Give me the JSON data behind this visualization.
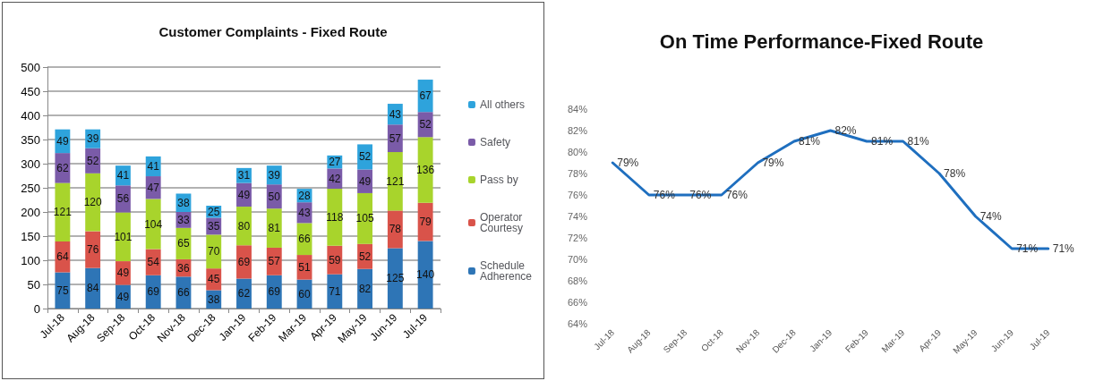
{
  "chart_data": [
    {
      "type": "bar",
      "title": "Customer Complaints - Fixed Route",
      "stacked": true,
      "categories": [
        "Jul-18",
        "Aug-18",
        "Sep-18",
        "Oct-18",
        "Nov-18",
        "Dec-18",
        "Jan-19",
        "Feb-19",
        "Mar-19",
        "Apr-19",
        "May-19",
        "Jun-19",
        "Jul-19"
      ],
      "series": [
        {
          "name": "Schedule Adherence",
          "color": "#2e75b6",
          "values": [
            75,
            84,
            49,
            69,
            66,
            38,
            62,
            69,
            60,
            71,
            82,
            125,
            140
          ]
        },
        {
          "name": "Operator Courtesy",
          "color": "#d9534a",
          "values": [
            64,
            76,
            49,
            54,
            36,
            45,
            69,
            57,
            51,
            59,
            52,
            78,
            79
          ]
        },
        {
          "name": "Pass by",
          "color": "#a8d42c",
          "values": [
            121,
            120,
            101,
            104,
            65,
            70,
            80,
            81,
            66,
            118,
            105,
            121,
            136
          ]
        },
        {
          "name": "Safety",
          "color": "#7a5ba8",
          "values": [
            62,
            52,
            56,
            47,
            33,
            35,
            49,
            50,
            43,
            42,
            49,
            57,
            52
          ]
        },
        {
          "name": "All others",
          "color": "#2ea3dc",
          "values": [
            49,
            39,
            41,
            41,
            38,
            25,
            31,
            39,
            28,
            27,
            52,
            43,
            67
          ]
        }
      ],
      "ylim": [
        0,
        500
      ],
      "yticks": [
        0,
        50,
        100,
        150,
        200,
        250,
        300,
        350,
        400,
        450,
        500
      ],
      "grid": "y",
      "legend": "right",
      "data_labels": true
    },
    {
      "type": "line",
      "title": "On Time Performance-Fixed Route",
      "categories": [
        "Jul-18",
        "Aug-18",
        "Sep-18",
        "Oct-18",
        "Nov-18",
        "Dec-18",
        "Jan-19",
        "Feb-19",
        "Mar-19",
        "Apr-19",
        "May-19",
        "Jun-19",
        "Jul-19"
      ],
      "series": [
        {
          "color": "#1f6fbf",
          "values": [
            79,
            76,
            76,
            76,
            79,
            81,
            82,
            81,
            81,
            78,
            74,
            71,
            71
          ],
          "value_labels": [
            "79%",
            "76%",
            "76%",
            "76%",
            "79%",
            "81%",
            "82%",
            "81%",
            "81%",
            "78%",
            "74%",
            "71%",
            "71%"
          ]
        }
      ],
      "ylim": [
        64,
        84
      ],
      "yticks": [
        {
          "value": 64,
          "label": "64%"
        },
        {
          "value": 66,
          "label": "66%"
        },
        {
          "value": 68,
          "label": "68%"
        },
        {
          "value": 70,
          "label": "70%"
        },
        {
          "value": 72,
          "label": "72%"
        },
        {
          "value": 74,
          "label": "74%"
        },
        {
          "value": 76,
          "label": "76%"
        },
        {
          "value": 78,
          "label": "78%"
        },
        {
          "value": 80,
          "label": "80%"
        },
        {
          "value": 82,
          "label": "82%"
        },
        {
          "value": 84,
          "label": "84%"
        }
      ],
      "grid": false,
      "legend": false,
      "marker": "none",
      "line_style": "solid"
    }
  ]
}
